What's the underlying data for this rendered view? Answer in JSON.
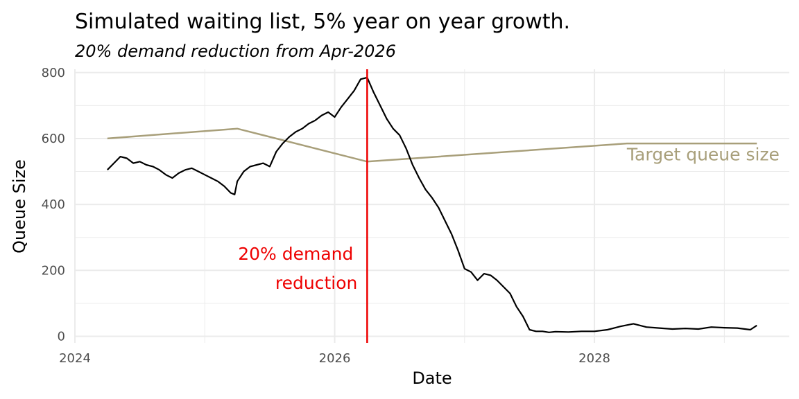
{
  "chart_data": {
    "type": "line",
    "title": "Simulated waiting list, 5% year on year growth.",
    "subtitle": "20% demand reduction from Apr-2026",
    "xlabel": "Date",
    "ylabel": "Queue Size",
    "xlim": [
      2024.0,
      2029.5
    ],
    "ylim": [
      -20,
      810
    ],
    "x_ticks": [
      2024,
      2026,
      2028
    ],
    "x_tick_labels": [
      "2024",
      "2026",
      "2028"
    ],
    "y_ticks": [
      0,
      200,
      400,
      600,
      800
    ],
    "y_tick_labels": [
      "0",
      "200",
      "400",
      "600",
      "800"
    ],
    "grid": true,
    "colors": {
      "queue": "#000000",
      "target": "#a89f7a",
      "intervention": "#ee0000",
      "grid": "#ebebeb"
    },
    "series": [
      {
        "name": "Queue size",
        "x": [
          2024.25,
          2024.3,
          2024.35,
          2024.4,
          2024.45,
          2024.5,
          2024.55,
          2024.6,
          2024.65,
          2024.7,
          2024.75,
          2024.8,
          2024.85,
          2024.9,
          2024.95,
          2025.0,
          2025.05,
          2025.1,
          2025.15,
          2025.2,
          2025.23,
          2025.25,
          2025.3,
          2025.35,
          2025.4,
          2025.45,
          2025.5,
          2025.55,
          2025.6,
          2025.65,
          2025.7,
          2025.75,
          2025.8,
          2025.85,
          2025.9,
          2025.95,
          2026.0,
          2026.05,
          2026.1,
          2026.15,
          2026.2,
          2026.25,
          2026.3,
          2026.35,
          2026.4,
          2026.45,
          2026.5,
          2026.55,
          2026.6,
          2026.65,
          2026.7,
          2026.75,
          2026.8,
          2026.85,
          2026.9,
          2026.95,
          2027.0,
          2027.05,
          2027.1,
          2027.15,
          2027.2,
          2027.25,
          2027.3,
          2027.35,
          2027.4,
          2027.45,
          2027.5,
          2027.55,
          2027.6,
          2027.65,
          2027.7,
          2027.8,
          2027.9,
          2028.0,
          2028.1,
          2028.2,
          2028.3,
          2028.4,
          2028.5,
          2028.6,
          2028.7,
          2028.8,
          2028.9,
          2029.0,
          2029.1,
          2029.2,
          2029.25
        ],
        "y": [
          505,
          525,
          545,
          540,
          525,
          530,
          520,
          515,
          505,
          490,
          480,
          495,
          505,
          510,
          500,
          490,
          480,
          470,
          455,
          435,
          430,
          470,
          500,
          515,
          520,
          525,
          515,
          560,
          585,
          605,
          620,
          630,
          645,
          655,
          670,
          680,
          665,
          695,
          720,
          745,
          780,
          785,
          740,
          700,
          660,
          630,
          610,
          570,
          520,
          480,
          445,
          420,
          390,
          350,
          310,
          260,
          205,
          195,
          170,
          190,
          185,
          170,
          150,
          130,
          90,
          60,
          20,
          15,
          15,
          12,
          14,
          13,
          15,
          15,
          20,
          30,
          38,
          28,
          25,
          22,
          24,
          22,
          28,
          26,
          25,
          20,
          33
        ]
      },
      {
        "name": "Target queue size",
        "x": [
          2024.25,
          2025.25,
          2026.25,
          2028.25,
          2029.25
        ],
        "y": [
          600,
          630,
          530,
          585,
          585
        ]
      }
    ],
    "annotations": [
      {
        "type": "vline",
        "x": 2026.25,
        "label": "20% demand\nreduction"
      },
      {
        "type": "label",
        "text": "Target queue size",
        "x": 2028.25,
        "y": 555
      }
    ]
  },
  "labels": {
    "anno_line1": "20% demand",
    "anno_line2": "reduction",
    "target_label": "Target queue size"
  }
}
